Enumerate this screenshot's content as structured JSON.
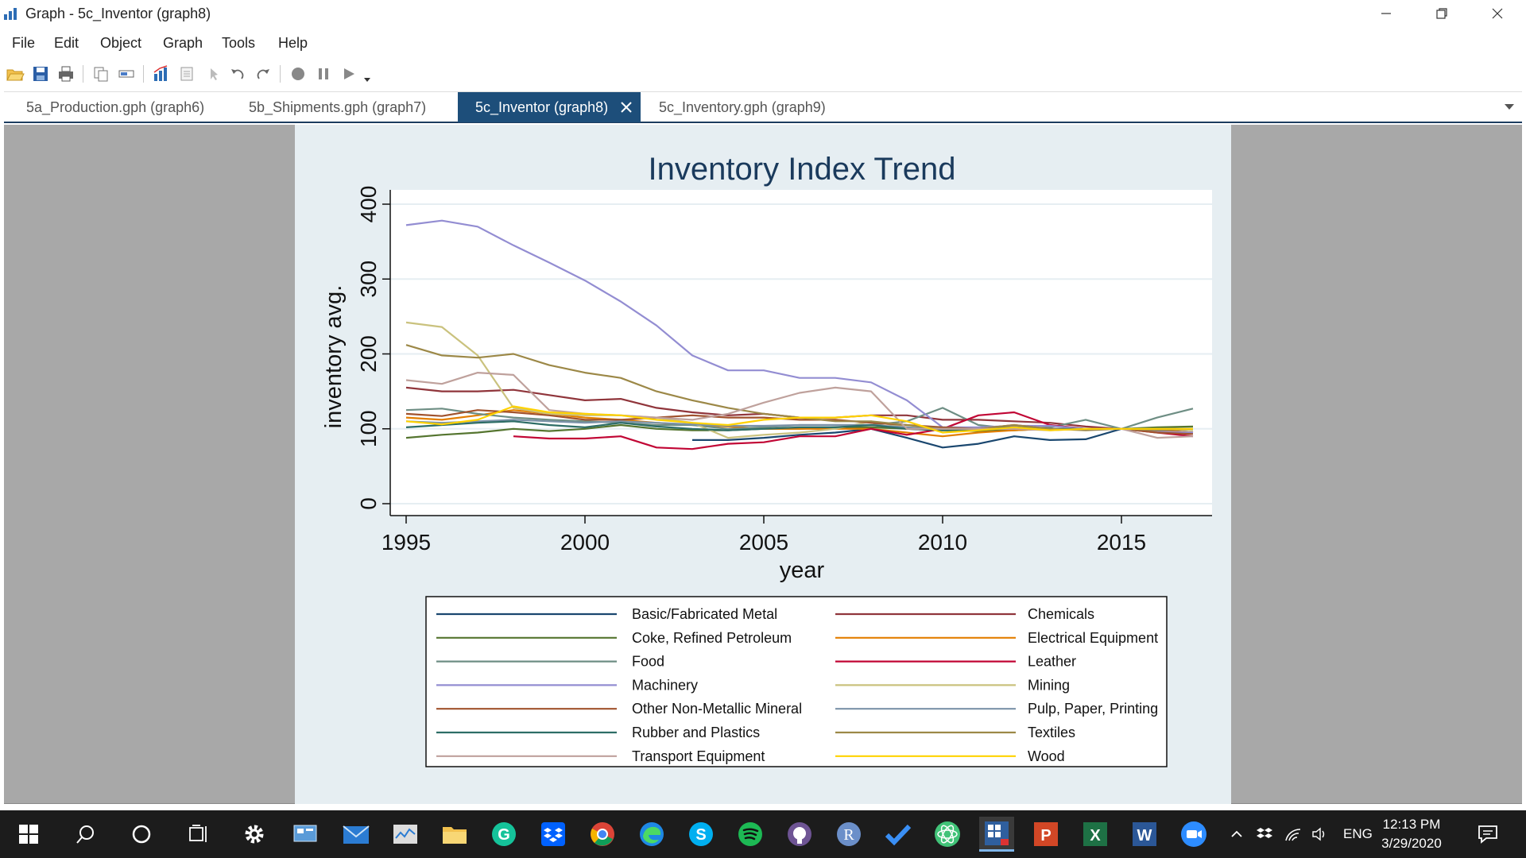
{
  "window": {
    "title": "Graph - 5c_Inventor (graph8)"
  },
  "menu": [
    "File",
    "Edit",
    "Object",
    "Graph",
    "Tools",
    "Help"
  ],
  "tabs": [
    {
      "label": "5a_Production.gph (graph6)",
      "active": false
    },
    {
      "label": "5b_Shipments.gph (graph7)",
      "active": false
    },
    {
      "label": "5c_Inventor (graph8)",
      "active": true
    },
    {
      "label": "5c_Inventory.gph (graph9)",
      "active": false
    }
  ],
  "chart_data": {
    "type": "line",
    "title": "Inventory Index Trend",
    "xlabel": "year",
    "ylabel": "inventory avg.",
    "xlim": [
      1995,
      2017
    ],
    "ylim": [
      0,
      400
    ],
    "xticks": [
      1995,
      2000,
      2005,
      2010,
      2015
    ],
    "yticks": [
      0,
      100,
      200,
      300,
      400
    ],
    "grid": true,
    "legend_position": "bottom",
    "series": [
      {
        "name": "Basic/Fabricated Metal",
        "color": "#1a476f",
        "x": [
          2003,
          2004,
          2005,
          2006,
          2007,
          2008,
          2009,
          2010,
          2011,
          2012,
          2013,
          2014,
          2015,
          2016,
          2017
        ],
        "y": [
          85,
          85,
          88,
          92,
          95,
          100,
          88,
          75,
          80,
          90,
          85,
          86,
          100,
          98,
          95
        ]
      },
      {
        "name": "Chemicals",
        "color": "#90353b",
        "x": [
          1995,
          1996,
          1997,
          1998,
          1999,
          2000,
          2001,
          2002,
          2003,
          2004,
          2005,
          2006,
          2007,
          2008,
          2009,
          2010,
          2011,
          2012,
          2013,
          2014,
          2015,
          2016,
          2017
        ],
        "y": [
          155,
          150,
          150,
          152,
          145,
          138,
          140,
          128,
          122,
          118,
          120,
          115,
          115,
          118,
          118,
          112,
          112,
          110,
          108,
          103,
          100,
          97,
          95
        ]
      },
      {
        "name": "Coke, Refined Petroleum",
        "color": "#55752f",
        "x": [
          1995,
          1996,
          1997,
          1998,
          1999,
          2000,
          2001,
          2002,
          2003,
          2004,
          2005,
          2006,
          2007,
          2008,
          2009,
          2010,
          2011,
          2012,
          2013,
          2014,
          2015,
          2016,
          2017
        ],
        "y": [
          88,
          92,
          95,
          100,
          97,
          100,
          105,
          100,
          98,
          98,
          100,
          100,
          102,
          102,
          100,
          98,
          97,
          98,
          100,
          100,
          100,
          102,
          103
        ]
      },
      {
        "name": "Electrical Equipment",
        "color": "#e37e00",
        "x": [
          1995,
          1996,
          1997,
          1998,
          1999,
          2000,
          2001,
          2002,
          2003,
          2004,
          2005,
          2006,
          2007,
          2008,
          2009,
          2010,
          2011,
          2012,
          2013,
          2014,
          2015,
          2016,
          2017
        ],
        "y": [
          115,
          112,
          118,
          125,
          120,
          115,
          112,
          108,
          105,
          103,
          100,
          100,
          100,
          100,
          95,
          90,
          95,
          98,
          100,
          100,
          100,
          98,
          95
        ]
      },
      {
        "name": "Food",
        "color": "#6e8e84",
        "x": [
          1995,
          1996,
          1997,
          1998,
          1999,
          2000,
          2001,
          2002,
          2003,
          2004,
          2005,
          2006,
          2007,
          2008,
          2009,
          2010,
          2011,
          2012,
          2013,
          2014,
          2015,
          2016,
          2017
        ],
        "y": [
          125,
          127,
          120,
          115,
          112,
          110,
          108,
          105,
          105,
          100,
          102,
          105,
          105,
          105,
          110,
          128,
          105,
          100,
          102,
          112,
          100,
          115,
          127
        ]
      },
      {
        "name": "Leather",
        "color": "#c10534",
        "x": [
          1998,
          1999,
          2000,
          2001,
          2002,
          2003,
          2004,
          2005,
          2006,
          2007,
          2008,
          2009,
          2010,
          2011,
          2012,
          2013,
          2014,
          2015,
          2016,
          2017
        ],
        "y": [
          90,
          87,
          87,
          90,
          75,
          73,
          80,
          82,
          90,
          90,
          100,
          92,
          100,
          118,
          122,
          105,
          100,
          100,
          95,
          90
        ]
      },
      {
        "name": "Machinery",
        "color": "#938dd2",
        "x": [
          1995,
          1996,
          1997,
          1998,
          1999,
          2000,
          2001,
          2002,
          2003,
          2004,
          2005,
          2006,
          2007,
          2008,
          2009,
          2010,
          2011,
          2012,
          2013,
          2014,
          2015,
          2016,
          2017
        ],
        "y": [
          372,
          378,
          370,
          345,
          322,
          298,
          270,
          238,
          198,
          178,
          178,
          168,
          168,
          162,
          138,
          102,
          102,
          104,
          104,
          100,
          100,
          96,
          95
        ]
      },
      {
        "name": "Mining",
        "color": "#cac27e",
        "x": [
          1995,
          1996,
          1997,
          1998,
          1999,
          2000,
          2001,
          2002,
          2003,
          2004,
          2005,
          2006,
          2007,
          2008,
          2009,
          2010,
          2011,
          2012,
          2013,
          2014,
          2015,
          2016,
          2017
        ],
        "y": [
          242,
          236,
          198,
          128,
          120,
          118,
          118,
          115,
          108,
          88,
          92,
          95,
          100,
          110,
          102,
          98,
          100,
          100,
          100,
          100,
          100,
          100,
          98
        ]
      },
      {
        "name": "Other Non-Metallic Mineral",
        "color": "#a0522d",
        "x": [
          1995,
          1996,
          1997,
          1998,
          1999,
          2000,
          2001,
          2002,
          2003,
          2004,
          2005,
          2006,
          2007,
          2008,
          2009,
          2010,
          2011,
          2012,
          2013,
          2014,
          2015,
          2016,
          2017
        ],
        "y": [
          120,
          117,
          125,
          122,
          118,
          112,
          112,
          115,
          118,
          115,
          115,
          112,
          112,
          108,
          105,
          102,
          100,
          105,
          100,
          100,
          100,
          95,
          93
        ]
      },
      {
        "name": "Pulp, Paper, Printing",
        "color": "#7b92a8",
        "x": [
          1995,
          1996,
          1997,
          1998,
          1999,
          2000,
          2001,
          2002,
          2003,
          2004,
          2005,
          2006,
          2007,
          2008,
          2009,
          2010,
          2011,
          2012,
          2013,
          2014,
          2015,
          2016,
          2017
        ],
        "y": [
          110,
          108,
          110,
          112,
          110,
          108,
          110,
          108,
          106,
          104,
          104,
          105,
          105,
          105,
          102,
          100,
          100,
          100,
          100,
          100,
          100,
          100,
          100
        ]
      },
      {
        "name": "Rubber and Plastics",
        "color": "#2d6d66",
        "x": [
          1995,
          1996,
          1997,
          1998,
          1999,
          2000,
          2001,
          2002,
          2003,
          2004,
          2005,
          2006,
          2007,
          2008,
          2009,
          2010,
          2011,
          2012,
          2013,
          2014,
          2015,
          2016,
          2017
        ],
        "y": [
          102,
          105,
          108,
          110,
          105,
          102,
          108,
          103,
          100,
          98,
          100,
          102,
          102,
          105,
          100,
          98,
          100,
          102,
          100,
          100,
          100,
          100,
          100
        ]
      },
      {
        "name": "Textiles",
        "color": "#9c8847",
        "x": [
          1995,
          1996,
          1997,
          1998,
          1999,
          2000,
          2001,
          2002,
          2003,
          2004,
          2005,
          2006,
          2007,
          2008,
          2009,
          2010,
          2011,
          2012,
          2013,
          2014,
          2015,
          2016,
          2017
        ],
        "y": [
          212,
          198,
          195,
          200,
          185,
          175,
          168,
          150,
          138,
          128,
          120,
          115,
          110,
          110,
          105,
          100,
          100,
          105,
          100,
          98,
          100,
          98,
          100
        ]
      },
      {
        "name": "Transport Equipment",
        "color": "#bfa19c",
        "x": [
          1995,
          1996,
          1997,
          1998,
          1999,
          2000,
          2001,
          2002,
          2003,
          2004,
          2005,
          2006,
          2007,
          2008,
          2009,
          2010,
          2011,
          2012,
          2013,
          2014,
          2015,
          2016,
          2017
        ],
        "y": [
          165,
          160,
          175,
          172,
          125,
          120,
          118,
          115,
          112,
          120,
          135,
          148,
          155,
          150,
          100,
          100,
          100,
          100,
          98,
          100,
          100,
          88,
          90
        ]
      },
      {
        "name": "Wood",
        "color": "#ffd200",
        "x": [
          1995,
          1996,
          1997,
          1998,
          1999,
          2000,
          2001,
          2002,
          2003,
          2004,
          2005,
          2006,
          2007,
          2008,
          2009,
          2010,
          2011,
          2012,
          2013,
          2014,
          2015,
          2016,
          2017
        ],
        "y": [
          110,
          106,
          112,
          130,
          122,
          120,
          118,
          112,
          108,
          105,
          112,
          115,
          115,
          118,
          110,
          95,
          98,
          102,
          98,
          100,
          100,
          100,
          100
        ]
      }
    ]
  },
  "taskbar": {
    "tray_lang": "ENG",
    "time": "12:13 PM",
    "date": "3/29/2020"
  }
}
